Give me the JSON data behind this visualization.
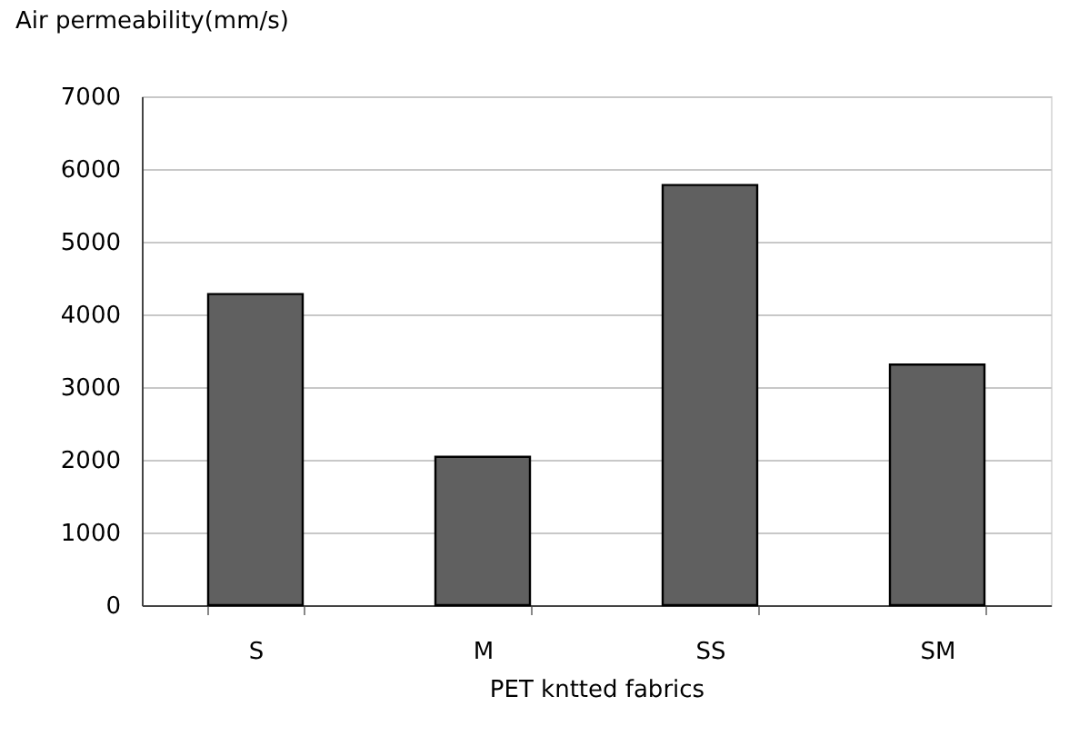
{
  "chart_data": {
    "type": "bar",
    "ylabel": "Air permeability(mm/s)",
    "xlabel": "PET kntted fabrics",
    "categories": [
      "S",
      "M",
      "SS",
      "SM"
    ],
    "values": [
      4280,
      2040,
      5780,
      3310
    ],
    "color": "#606060",
    "ylim": [
      0,
      7000
    ],
    "yticks": [
      0,
      1000,
      2000,
      3000,
      4000,
      5000,
      6000,
      7000
    ],
    "grid": "y"
  }
}
